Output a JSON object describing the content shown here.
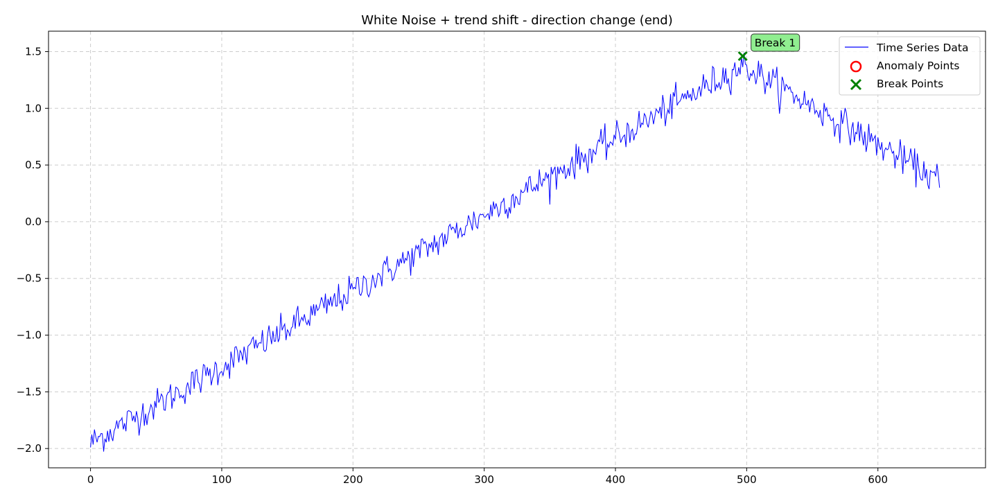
{
  "chart_data": {
    "type": "line",
    "title": "White Noise + trend shift - direction change (end)",
    "xlabel": "",
    "ylabel": "",
    "xlim": [
      -32,
      682
    ],
    "ylim": [
      -2.17,
      1.68
    ],
    "x_ticks": [
      0,
      100,
      200,
      300,
      400,
      500,
      600
    ],
    "y_ticks": [
      -2.0,
      -1.5,
      -1.0,
      -0.5,
      0.0,
      0.5,
      1.0,
      1.5
    ],
    "grid": true,
    "legend_position": "top-right",
    "trend": {
      "n_points": 648,
      "break_index": 497,
      "start_value": -1.95,
      "peak_value": 1.38,
      "end_value": 0.36,
      "noise_amplitude": 0.07
    },
    "series": [
      {
        "name": "Time Series Data",
        "color": "#0000ff",
        "style": "line"
      },
      {
        "name": "Anomaly Points",
        "color": "#ff0000",
        "style": "circle-outline",
        "points": []
      },
      {
        "name": "Break Points",
        "color": "#008000",
        "style": "x-marker",
        "points": [
          {
            "x": 497,
            "y": 1.46
          }
        ]
      }
    ],
    "annotations": [
      {
        "text": "Break 1",
        "x": 497,
        "y": 1.46,
        "box_color": "#90ee90"
      }
    ]
  }
}
